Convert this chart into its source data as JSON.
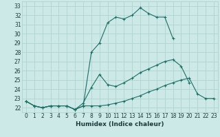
{
  "title": "",
  "xlabel": "Humidex (Indice chaleur)",
  "ylabel": "",
  "background_color": "#cce9e7",
  "grid_color": "#aed4d0",
  "line_color": "#1a6e64",
  "xlim": [
    -0.5,
    23.5
  ],
  "ylim": [
    21.5,
    33.5
  ],
  "xticks": [
    0,
    1,
    2,
    3,
    4,
    5,
    6,
    7,
    8,
    9,
    10,
    11,
    12,
    13,
    14,
    15,
    16,
    17,
    18,
    19,
    20,
    21,
    22,
    23
  ],
  "yticks": [
    22,
    23,
    24,
    25,
    26,
    27,
    28,
    29,
    30,
    31,
    32,
    33
  ],
  "series": [
    {
      "x": [
        0,
        1,
        2,
        3,
        4,
        5,
        6,
        7,
        8,
        9,
        10,
        11,
        12,
        13,
        14,
        15,
        16,
        17,
        18,
        19,
        20,
        21,
        22,
        23
      ],
      "y": [
        22.7,
        22.2,
        22.0,
        22.2,
        22.2,
        22.2,
        21.8,
        22.2,
        28.0,
        29.0,
        31.2,
        31.8,
        31.6,
        32.0,
        32.8,
        32.2,
        31.8,
        31.8,
        29.5,
        null,
        null,
        null,
        null,
        null
      ]
    },
    {
      "x": [
        0,
        1,
        2,
        3,
        4,
        5,
        6,
        7,
        8,
        9,
        10,
        11,
        12,
        13,
        14,
        15,
        16,
        17,
        18,
        19,
        20,
        21,
        22,
        23
      ],
      "y": [
        22.7,
        22.2,
        22.0,
        22.2,
        22.2,
        22.2,
        21.8,
        22.5,
        24.2,
        25.6,
        24.5,
        24.3,
        24.7,
        25.2,
        25.8,
        26.2,
        26.6,
        27.0,
        27.2,
        26.5,
        24.7,
        null,
        null,
        null
      ]
    },
    {
      "x": [
        0,
        1,
        2,
        3,
        4,
        5,
        6,
        7,
        8,
        9,
        10,
        11,
        12,
        13,
        14,
        15,
        16,
        17,
        18,
        19,
        20,
        21,
        22,
        23
      ],
      "y": [
        22.7,
        22.2,
        22.0,
        22.2,
        22.2,
        22.2,
        21.8,
        22.2,
        22.2,
        22.2,
        22.3,
        22.5,
        22.7,
        23.0,
        23.3,
        23.7,
        24.0,
        24.4,
        24.7,
        25.0,
        25.2,
        23.5,
        23.0,
        23.0
      ]
    }
  ]
}
